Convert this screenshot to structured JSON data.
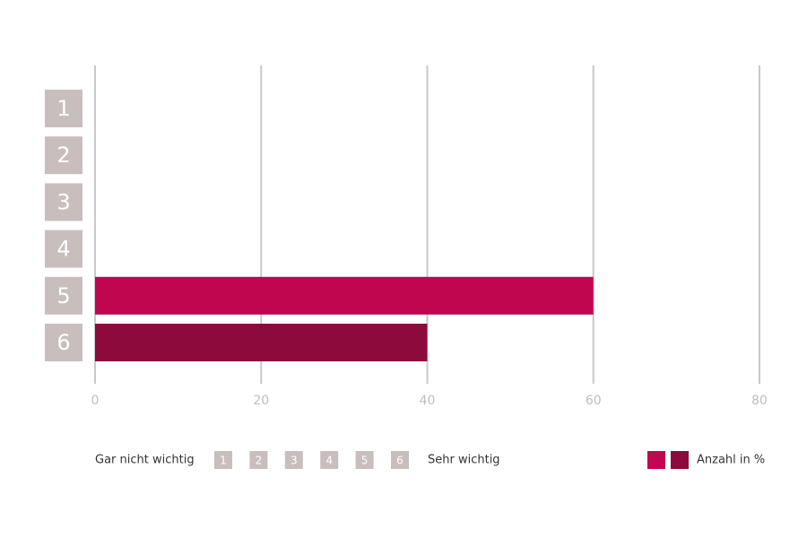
{
  "chart_data": {
    "type": "bar",
    "orientation": "horizontal",
    "categories": [
      "1",
      "2",
      "3",
      "4",
      "5",
      "6"
    ],
    "values": [
      0,
      0,
      0,
      0,
      60,
      40
    ],
    "colors": [
      null,
      null,
      null,
      null,
      "#c0064f",
      "#8c0a3c"
    ],
    "xlim": [
      0,
      80
    ],
    "xticks": [
      0,
      20,
      40,
      60,
      80
    ],
    "grid": true,
    "legend": {
      "low_label": "Gar nicht wichtig",
      "high_label": "Sehr wichtig",
      "swatches": [
        "#c0064f",
        "#8c0a3c"
      ],
      "label": "Anzahl in %"
    }
  }
}
